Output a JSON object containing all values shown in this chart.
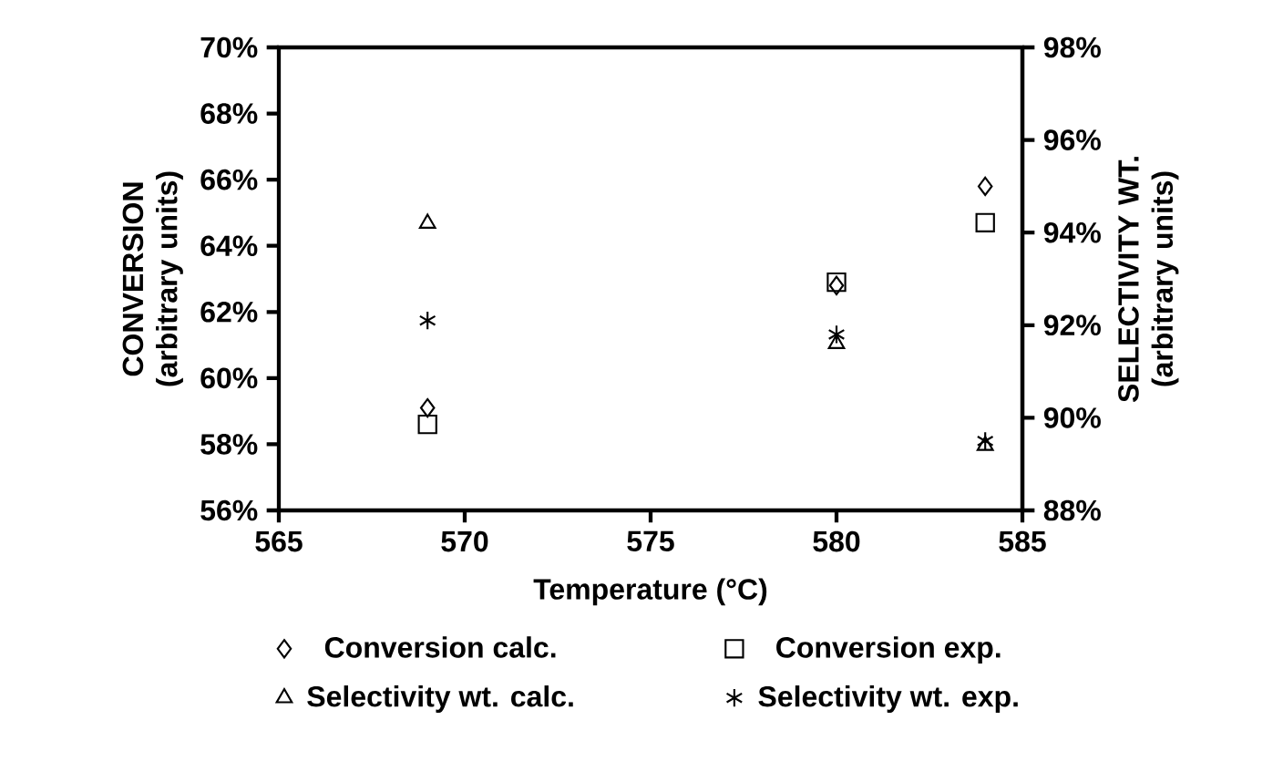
{
  "chart_data": {
    "type": "scatter",
    "xlabel": "Temperature (°C)",
    "ylabel": "CONVERSION (arbitrary units)",
    "y2label": "SELECTIVITY WT. (arbitrary units)",
    "xlim": [
      565,
      585
    ],
    "xticks": [
      565,
      570,
      575,
      580,
      585
    ],
    "ylim": [
      56,
      70
    ],
    "yticks": [
      {
        "value": 56,
        "label": "56%"
      },
      {
        "value": 58,
        "label": "58%"
      },
      {
        "value": 60,
        "label": "60%"
      },
      {
        "value": 62,
        "label": "62%"
      },
      {
        "value": 64,
        "label": "64%"
      },
      {
        "value": 66,
        "label": "66%"
      },
      {
        "value": 68,
        "label": "68%"
      },
      {
        "value": 70,
        "label": "70%"
      }
    ],
    "y2lim": [
      88,
      98
    ],
    "y2ticks": [
      {
        "value": 88,
        "label": "88%"
      },
      {
        "value": 90,
        "label": "90%"
      },
      {
        "value": 92,
        "label": "92%"
      },
      {
        "value": 94,
        "label": "94%"
      },
      {
        "value": 96,
        "label": "96%"
      },
      {
        "value": 98,
        "label": "98%"
      }
    ],
    "x": [
      569,
      580,
      584
    ],
    "series": [
      {
        "name": "Conversion calc.",
        "color": "#000000",
        "marker": "diamond",
        "values": [
          59.1,
          62.8,
          65.8
        ]
      },
      {
        "name": "Conversion exp.",
        "color": "#000000",
        "marker": "square",
        "values": [
          58.6,
          62.9,
          64.7
        ]
      },
      {
        "name": "Selectivity wt. calc.",
        "color": "#000000",
        "marker": "triangle",
        "axis": "y2",
        "values": [
          94.2,
          91.6,
          89.4
        ]
      },
      {
        "name": "Selectivity wt. exp.",
        "color": "#000000",
        "marker": "cross",
        "axis": "y2",
        "values": [
          92.1,
          91.8,
          89.5
        ]
      }
    ],
    "legend": "bottom"
  }
}
